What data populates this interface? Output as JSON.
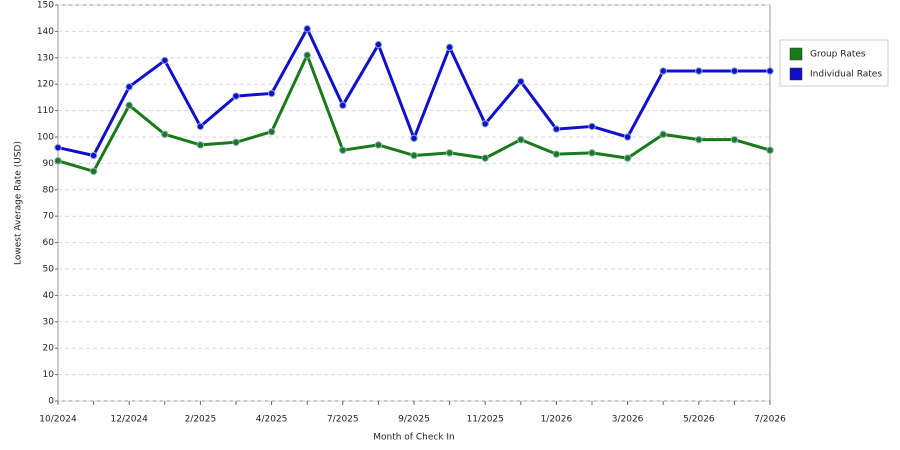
{
  "chart_data": {
    "type": "line",
    "x_label": "Month of Check In",
    "y_label": "Lowest Average Rate (USD)",
    "categories": [
      "10/2024",
      null,
      "12/2024",
      null,
      "2/2025",
      null,
      "4/2025",
      null,
      "7/2025",
      null,
      "9/2025",
      null,
      "11/2025",
      null,
      "1/2026",
      null,
      "3/2026",
      null,
      "5/2026",
      null,
      "7/2026"
    ],
    "series": [
      {
        "name": "Group Rates",
        "color": "#1a7a1a",
        "values": [
          91,
          87,
          112,
          101,
          97,
          98,
          102,
          131,
          95,
          97,
          93,
          94,
          92,
          99,
          93.5,
          94,
          92,
          101,
          99,
          99,
          95
        ]
      },
      {
        "name": "Individual Rates",
        "color": "#1010cc",
        "values": [
          96,
          93,
          119,
          129,
          104,
          115.5,
          116.5,
          141,
          112,
          135,
          99.5,
          134,
          105,
          121,
          103,
          104,
          100,
          125,
          125,
          125,
          125
        ]
      }
    ],
    "ylim": [
      0,
      150
    ],
    "yticks": [
      0,
      10,
      20,
      30,
      40,
      50,
      60,
      70,
      80,
      90,
      100,
      110,
      120,
      130,
      140,
      150
    ],
    "grid": true,
    "legend": "right"
  }
}
